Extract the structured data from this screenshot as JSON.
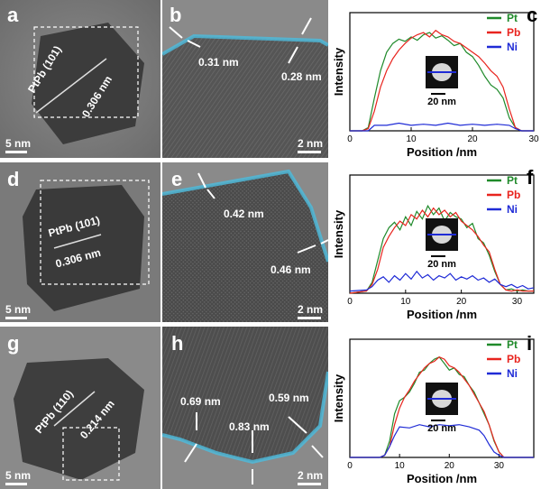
{
  "rows": [
    {
      "overview": {
        "label": "a",
        "lattice": "PtPb (101)",
        "spacing": "0.306 nm",
        "scale": "5 nm"
      },
      "zoom": {
        "label": "b",
        "measurements": [
          "0.31 nm",
          "0.28 nm"
        ],
        "scale": "2 nm"
      }
    },
    {
      "overview": {
        "label": "d",
        "lattice": "PtPb (101)",
        "spacing": "0.306 nm",
        "scale": "5 nm"
      },
      "zoom": {
        "label": "e",
        "measurements": [
          "0.42 nm",
          "0.46 nm"
        ],
        "scale": "2 nm"
      }
    },
    {
      "overview": {
        "label": "g",
        "lattice": "PtPb (110)",
        "spacing": "0.214 nm",
        "scale": "5 nm"
      },
      "zoom": {
        "label": "h",
        "measurements": [
          "0.69 nm",
          "0.59 nm",
          "0.83 nm"
        ],
        "scale": "2 nm"
      }
    }
  ],
  "colors": {
    "Pt": "#1f8a2a",
    "Pb": "#e8241e",
    "Ni": "#1f2bd6",
    "shell": "#4fb8d8"
  },
  "chart_data": [
    {
      "type": "line",
      "label": "c",
      "ylabel": "Intensity",
      "xlabel": "Position /nm",
      "xlim": [
        0,
        30
      ],
      "xticks": [
        0,
        10,
        20,
        30
      ],
      "ylim": [
        0,
        1
      ],
      "inset_scale": "20 nm",
      "series": [
        {
          "name": "Pt",
          "x": [
            0,
            2,
            3,
            4,
            5,
            6,
            7,
            8,
            9,
            10,
            11,
            12,
            13,
            14,
            15,
            16,
            17,
            18,
            19,
            20,
            21,
            22,
            23,
            24,
            25,
            26,
            27,
            28,
            30
          ],
          "y": [
            0,
            0,
            0.03,
            0.3,
            0.55,
            0.72,
            0.8,
            0.84,
            0.82,
            0.86,
            0.83,
            0.88,
            0.9,
            0.85,
            0.87,
            0.83,
            0.78,
            0.8,
            0.72,
            0.68,
            0.6,
            0.5,
            0.42,
            0.38,
            0.3,
            0.12,
            0.03,
            0,
            0
          ]
        },
        {
          "name": "Pb",
          "x": [
            0,
            2,
            3,
            4,
            5,
            6,
            7,
            8,
            9,
            10,
            11,
            12,
            13,
            14,
            15,
            16,
            17,
            18,
            19,
            20,
            21,
            22,
            23,
            24,
            25,
            26,
            27,
            28,
            30
          ],
          "y": [
            0,
            0,
            0.02,
            0.18,
            0.4,
            0.55,
            0.66,
            0.74,
            0.8,
            0.85,
            0.88,
            0.9,
            0.86,
            0.92,
            0.88,
            0.86,
            0.82,
            0.8,
            0.76,
            0.72,
            0.68,
            0.62,
            0.55,
            0.5,
            0.4,
            0.2,
            0.03,
            0,
            0
          ]
        },
        {
          "name": "Ni",
          "x": [
            0,
            2,
            3,
            4,
            6,
            8,
            10,
            12,
            14,
            16,
            18,
            20,
            22,
            24,
            26,
            27,
            28,
            30
          ],
          "y": [
            0,
            0,
            0,
            0.05,
            0.05,
            0.07,
            0.05,
            0.06,
            0.05,
            0.07,
            0.05,
            0.06,
            0.05,
            0.06,
            0.05,
            0.02,
            0,
            0
          ]
        }
      ]
    },
    {
      "type": "line",
      "label": "f",
      "ylabel": "Intensity",
      "xlabel": "Position /nm",
      "xlim": [
        0,
        33
      ],
      "xticks": [
        0,
        10,
        20,
        30
      ],
      "ylim": [
        0,
        1
      ],
      "inset_scale": "20 nm",
      "series": [
        {
          "name": "Pt",
          "x": [
            0,
            3,
            4,
            5,
            6,
            7,
            8,
            9,
            10,
            11,
            12,
            13,
            14,
            15,
            16,
            17,
            18,
            19,
            20,
            21,
            22,
            23,
            24,
            25,
            26,
            27,
            28,
            29,
            30,
            31,
            32,
            33
          ],
          "y": [
            0,
            0.02,
            0.1,
            0.3,
            0.5,
            0.6,
            0.65,
            0.58,
            0.7,
            0.62,
            0.75,
            0.68,
            0.8,
            0.72,
            0.78,
            0.66,
            0.74,
            0.7,
            0.68,
            0.6,
            0.64,
            0.5,
            0.46,
            0.35,
            0.2,
            0.08,
            0.03,
            0.04,
            0.02,
            0.03,
            0.02,
            0.02
          ]
        },
        {
          "name": "Pb",
          "x": [
            0,
            3,
            4,
            5,
            6,
            7,
            8,
            9,
            10,
            11,
            12,
            13,
            14,
            15,
            16,
            17,
            18,
            19,
            20,
            21,
            22,
            23,
            24,
            25,
            26,
            27,
            28,
            29,
            30,
            31,
            32,
            33
          ],
          "y": [
            0,
            0.02,
            0.08,
            0.22,
            0.42,
            0.52,
            0.6,
            0.66,
            0.62,
            0.72,
            0.68,
            0.76,
            0.7,
            0.78,
            0.72,
            0.76,
            0.7,
            0.74,
            0.66,
            0.62,
            0.58,
            0.52,
            0.44,
            0.38,
            0.22,
            0.08,
            0.03,
            0.02,
            0.03,
            0.02,
            0.02,
            0.02
          ]
        },
        {
          "name": "Ni",
          "x": [
            0,
            3,
            4,
            5,
            6,
            7,
            8,
            9,
            10,
            11,
            12,
            13,
            14,
            15,
            16,
            17,
            18,
            19,
            20,
            21,
            22,
            23,
            24,
            25,
            26,
            27,
            28,
            29,
            30,
            31,
            32,
            33
          ],
          "y": [
            0.02,
            0.03,
            0.06,
            0.12,
            0.15,
            0.1,
            0.16,
            0.12,
            0.18,
            0.13,
            0.2,
            0.14,
            0.17,
            0.12,
            0.16,
            0.14,
            0.18,
            0.12,
            0.15,
            0.13,
            0.16,
            0.12,
            0.14,
            0.1,
            0.13,
            0.08,
            0.06,
            0.08,
            0.05,
            0.07,
            0.04,
            0.05
          ]
        }
      ]
    },
    {
      "type": "line",
      "label": "i",
      "ylabel": "Intensity",
      "xlabel": "Position /nm",
      "xlim": [
        0,
        37
      ],
      "xticks": [
        0,
        10,
        20,
        30
      ],
      "ylim": [
        0,
        1
      ],
      "inset_scale": "20 nm",
      "series": [
        {
          "name": "Pt",
          "x": [
            0,
            6,
            7,
            8,
            9,
            10,
            11,
            12,
            13,
            14,
            15,
            16,
            17,
            18,
            19,
            20,
            21,
            22,
            23,
            24,
            25,
            26,
            27,
            28,
            29,
            30,
            31,
            37
          ],
          "y": [
            0,
            0,
            0.02,
            0.15,
            0.4,
            0.52,
            0.55,
            0.6,
            0.68,
            0.78,
            0.8,
            0.86,
            0.9,
            0.92,
            0.86,
            0.8,
            0.82,
            0.76,
            0.74,
            0.66,
            0.6,
            0.5,
            0.4,
            0.3,
            0.15,
            0.05,
            0,
            0
          ]
        },
        {
          "name": "Pb",
          "x": [
            0,
            6,
            7,
            8,
            9,
            10,
            11,
            12,
            13,
            14,
            15,
            16,
            17,
            18,
            19,
            20,
            21,
            22,
            23,
            24,
            25,
            26,
            27,
            28,
            29,
            30,
            31,
            37
          ],
          "y": [
            0,
            0,
            0.02,
            0.1,
            0.3,
            0.45,
            0.55,
            0.62,
            0.7,
            0.76,
            0.82,
            0.86,
            0.88,
            0.92,
            0.9,
            0.84,
            0.82,
            0.78,
            0.72,
            0.66,
            0.58,
            0.5,
            0.42,
            0.3,
            0.16,
            0.05,
            0,
            0
          ]
        },
        {
          "name": "Ni",
          "x": [
            0,
            6,
            7,
            8,
            9,
            10,
            12,
            14,
            16,
            18,
            20,
            22,
            24,
            26,
            27,
            28,
            29,
            30,
            31,
            37
          ],
          "y": [
            0,
            0,
            0.02,
            0.1,
            0.2,
            0.28,
            0.27,
            0.3,
            0.28,
            0.3,
            0.29,
            0.3,
            0.28,
            0.25,
            0.2,
            0.12,
            0.05,
            0.02,
            0,
            0
          ]
        }
      ]
    }
  ]
}
